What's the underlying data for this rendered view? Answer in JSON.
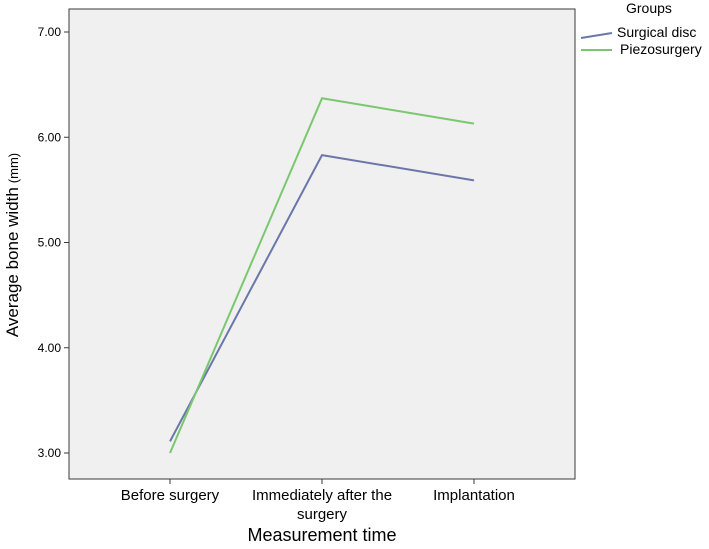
{
  "chart_data": {
    "type": "line",
    "categories": [
      "Before surgery",
      "Immediately after the surgery",
      "Implantation"
    ],
    "category_lines": [
      [
        "Before surgery"
      ],
      [
        "Immediately after the",
        "surgery"
      ],
      [
        "Implantation"
      ]
    ],
    "series": [
      {
        "name": "Surgical disc",
        "values": [
          3.11,
          5.83,
          5.59
        ],
        "color": "#6b77aa"
      },
      {
        "name": "Piezosurgery",
        "values": [
          3.0,
          6.37,
          6.13
        ],
        "color": "#79c86e"
      }
    ],
    "ylabel": "Average bone width",
    "ylabel_unit": "(mm)",
    "xlabel": "Measurement time",
    "legend_title": "Groups",
    "legend_position": "top-right",
    "ylim": [
      2.8,
      7.3
    ],
    "yticks": [
      3.0,
      4.0,
      5.0,
      6.0,
      7.0
    ],
    "ytick_labels": [
      "3.00",
      "4.00",
      "5.00",
      "6.00",
      "7.00"
    ],
    "grid": false,
    "plot_background": "#f0f0f0"
  }
}
